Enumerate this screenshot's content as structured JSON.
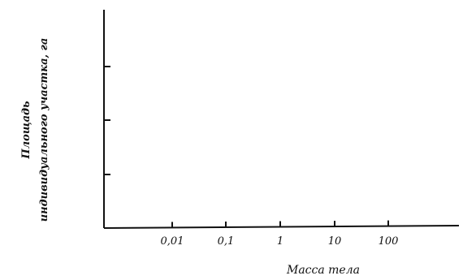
{
  "chart_data": {
    "type": "scatter",
    "title": "",
    "xlabel": "Масса  тела",
    "ylabel_lines": [
      "Площадь",
      "индивидуального участка, га"
    ],
    "x_ticks": [
      "0,01",
      "0,1",
      "1",
      "10",
      "100"
    ],
    "x_scale": "log",
    "xlim": [
      0.001,
      1000
    ],
    "y_ticks_count": 3,
    "grid": false,
    "series": [],
    "colors": {
      "axis": "#111111",
      "text": "#111111",
      "background": "#ffffff"
    }
  }
}
